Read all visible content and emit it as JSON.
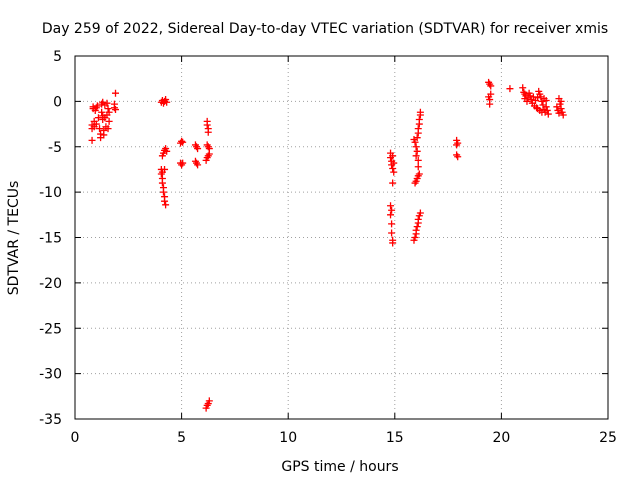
{
  "chart_data": {
    "type": "scatter",
    "title": "Day 259 of 2022, Sidereal Day-to-day VTEC variation (SDTVAR) for receiver xmis",
    "xlabel": "GPS time / hours",
    "ylabel": "SDTVAR / TECUs",
    "xlim": [
      0,
      25
    ],
    "ylim": [
      -35,
      5
    ],
    "xticks": [
      0,
      5,
      10,
      15,
      20,
      25
    ],
    "yticks": [
      5,
      0,
      -5,
      -10,
      -15,
      -20,
      -25,
      -30,
      -35
    ],
    "grid": true,
    "marker": "+",
    "color": "#ff0000",
    "series": [
      {
        "name": "SDTVAR",
        "points": [
          [
            0.8,
            -4.3
          ],
          [
            0.8,
            -3.0
          ],
          [
            0.8,
            -2.6
          ],
          [
            0.85,
            -0.8
          ],
          [
            0.85,
            -0.6
          ],
          [
            0.9,
            -2.2
          ],
          [
            0.9,
            -2.8
          ],
          [
            0.95,
            -1.0
          ],
          [
            1.0,
            -0.7
          ],
          [
            1.0,
            -2.5
          ],
          [
            1.05,
            -0.5
          ],
          [
            1.1,
            -1.8
          ],
          [
            1.15,
            -3.0
          ],
          [
            1.2,
            -4.0
          ],
          [
            1.2,
            -3.6
          ],
          [
            1.25,
            -0.3
          ],
          [
            1.25,
            -1.2
          ],
          [
            1.3,
            -0.1
          ],
          [
            1.3,
            -1.6
          ],
          [
            1.3,
            -2.0
          ],
          [
            1.35,
            -3.7
          ],
          [
            1.35,
            -3.2
          ],
          [
            1.4,
            -0.4
          ],
          [
            1.4,
            -1.8
          ],
          [
            1.45,
            -2.8
          ],
          [
            1.5,
            -0.2
          ],
          [
            1.5,
            -1.5
          ],
          [
            1.55,
            -3.0
          ],
          [
            1.55,
            -0.8
          ],
          [
            1.6,
            -1.2
          ],
          [
            1.6,
            -2.2
          ],
          [
            1.85,
            -0.3
          ],
          [
            1.85,
            -0.7
          ],
          [
            1.9,
            0.9
          ],
          [
            1.9,
            -0.9
          ],
          [
            4.05,
            -0.1
          ],
          [
            4.1,
            0.1
          ],
          [
            4.15,
            -0.2
          ],
          [
            4.2,
            0.0
          ],
          [
            4.25,
            0.2
          ],
          [
            4.3,
            -0.1
          ],
          [
            4.1,
            -6.0
          ],
          [
            4.15,
            -5.7
          ],
          [
            4.2,
            -5.4
          ],
          [
            4.25,
            -5.2
          ],
          [
            4.3,
            -5.5
          ],
          [
            4.05,
            -7.5
          ],
          [
            4.05,
            -8.0
          ],
          [
            4.1,
            -8.5
          ],
          [
            4.1,
            -9.0
          ],
          [
            4.15,
            -9.5
          ],
          [
            4.15,
            -10.0
          ],
          [
            4.2,
            -10.5
          ],
          [
            4.2,
            -11.0
          ],
          [
            4.25,
            -11.4
          ],
          [
            4.1,
            -7.8
          ],
          [
            4.2,
            -7.5
          ],
          [
            4.95,
            -4.6
          ],
          [
            5.0,
            -4.4
          ],
          [
            5.05,
            -4.5
          ],
          [
            4.95,
            -6.8
          ],
          [
            5.0,
            -7.0
          ],
          [
            5.05,
            -6.8
          ],
          [
            5.65,
            -4.8
          ],
          [
            5.7,
            -5.0
          ],
          [
            5.75,
            -5.2
          ],
          [
            5.65,
            -6.6
          ],
          [
            5.7,
            -6.8
          ],
          [
            5.75,
            -7.0
          ],
          [
            6.2,
            -2.2
          ],
          [
            6.2,
            -2.6
          ],
          [
            6.25,
            -3.0
          ],
          [
            6.25,
            -3.4
          ],
          [
            6.2,
            -4.8
          ],
          [
            6.25,
            -5.0
          ],
          [
            6.3,
            -5.2
          ],
          [
            6.15,
            -6.5
          ],
          [
            6.2,
            -6.2
          ],
          [
            6.25,
            -6.0
          ],
          [
            6.3,
            -5.8
          ],
          [
            6.15,
            -33.8
          ],
          [
            6.2,
            -33.5
          ],
          [
            6.25,
            -33.3
          ],
          [
            6.3,
            -33.0
          ],
          [
            14.8,
            -5.7
          ],
          [
            14.8,
            -6.2
          ],
          [
            14.85,
            -6.6
          ],
          [
            14.85,
            -7.0
          ],
          [
            14.9,
            -7.4
          ],
          [
            14.9,
            -6.0
          ],
          [
            14.95,
            -6.8
          ],
          [
            14.95,
            -7.8
          ],
          [
            14.9,
            -9.0
          ],
          [
            14.8,
            -11.5
          ],
          [
            14.8,
            -12.5
          ],
          [
            14.85,
            -13.5
          ],
          [
            14.85,
            -14.5
          ],
          [
            14.9,
            -15.3
          ],
          [
            14.9,
            -15.6
          ],
          [
            14.85,
            -12.0
          ],
          [
            15.9,
            -4.2
          ],
          [
            15.95,
            -4.5
          ],
          [
            16.0,
            -5.0
          ],
          [
            16.0,
            -6.0
          ],
          [
            16.05,
            -5.5
          ],
          [
            16.1,
            -3.5
          ],
          [
            16.1,
            -3.0
          ],
          [
            16.15,
            -2.5
          ],
          [
            16.15,
            -2.0
          ],
          [
            16.2,
            -1.5
          ],
          [
            16.2,
            -1.2
          ],
          [
            16.05,
            -4.0
          ],
          [
            16.1,
            -6.5
          ],
          [
            15.95,
            -9.0
          ],
          [
            16.0,
            -8.8
          ],
          [
            16.05,
            -8.5
          ],
          [
            16.1,
            -8.2
          ],
          [
            16.15,
            -8.0
          ],
          [
            16.1,
            -7.2
          ],
          [
            15.9,
            -15.3
          ],
          [
            15.95,
            -15.0
          ],
          [
            16.0,
            -14.6
          ],
          [
            16.0,
            -14.2
          ],
          [
            16.05,
            -13.8
          ],
          [
            16.1,
            -13.4
          ],
          [
            16.1,
            -13.0
          ],
          [
            16.15,
            -12.6
          ],
          [
            16.2,
            -12.3
          ],
          [
            17.9,
            -4.3
          ],
          [
            17.95,
            -4.6
          ],
          [
            17.9,
            -4.8
          ],
          [
            17.9,
            -5.9
          ],
          [
            17.95,
            -6.1
          ],
          [
            19.4,
            2.1
          ],
          [
            19.45,
            1.9
          ],
          [
            19.5,
            1.7
          ],
          [
            19.4,
            0.5
          ],
          [
            19.45,
            0.2
          ],
          [
            19.45,
            -0.3
          ],
          [
            19.5,
            0.8
          ],
          [
            20.4,
            1.4
          ],
          [
            21.0,
            1.5
          ],
          [
            21.05,
            1.0
          ],
          [
            21.1,
            0.8
          ],
          [
            21.1,
            0.3
          ],
          [
            21.15,
            0.6
          ],
          [
            21.2,
            0.0
          ],
          [
            21.25,
            0.4
          ],
          [
            21.3,
            0.9
          ],
          [
            21.35,
            0.6
          ],
          [
            21.4,
            0.2
          ],
          [
            21.45,
            -0.2
          ],
          [
            21.5,
            0.5
          ],
          [
            21.55,
            -0.5
          ],
          [
            21.6,
            0.1
          ],
          [
            21.65,
            -0.7
          ],
          [
            21.7,
            0.4
          ],
          [
            21.75,
            1.1
          ],
          [
            21.8,
            0.8
          ],
          [
            21.85,
            0.5
          ],
          [
            21.9,
            0.0
          ],
          [
            21.95,
            -0.4
          ],
          [
            22.0,
            -0.9
          ],
          [
            22.05,
            -1.2
          ],
          [
            22.1,
            -0.6
          ],
          [
            22.15,
            -1.0
          ],
          [
            22.2,
            -1.4
          ],
          [
            22.0,
            0.3
          ],
          [
            22.1,
            0.1
          ],
          [
            21.8,
            -1.0
          ],
          [
            21.9,
            -1.2
          ],
          [
            21.7,
            -0.8
          ],
          [
            22.6,
            -0.6
          ],
          [
            22.65,
            -1.0
          ],
          [
            22.7,
            -1.3
          ],
          [
            22.75,
            -0.3
          ],
          [
            22.8,
            -0.8
          ],
          [
            22.85,
            -1.2
          ],
          [
            22.9,
            -1.5
          ],
          [
            22.7,
            0.3
          ],
          [
            22.8,
            0.0
          ]
        ]
      }
    ]
  }
}
